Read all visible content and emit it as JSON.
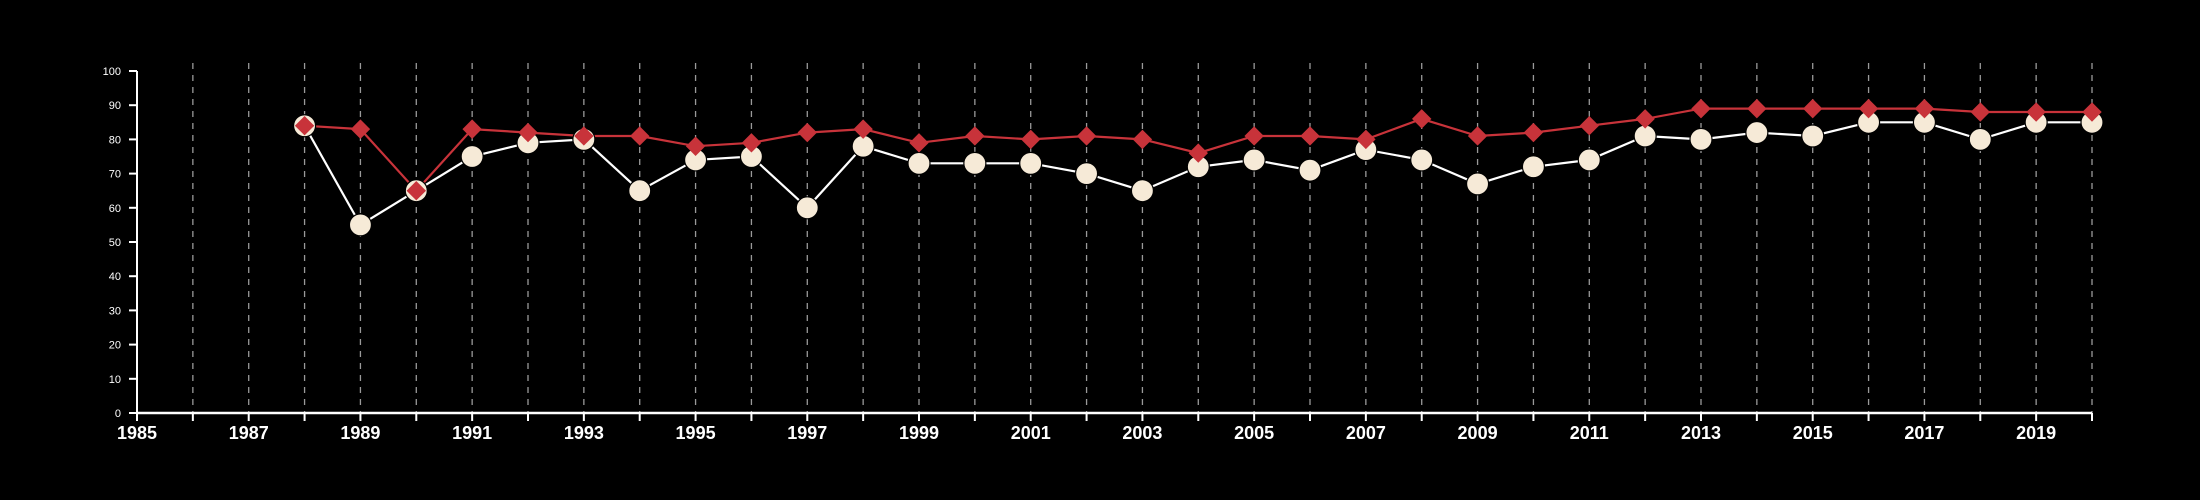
{
  "chart_data": {
    "type": "line",
    "title": "",
    "xlabel": "",
    "ylabel": "",
    "xlim": [
      1985,
      2020
    ],
    "ylim": [
      0,
      100
    ],
    "y_ticks": [
      0,
      10,
      20,
      30,
      40,
      50,
      60,
      70,
      80,
      90,
      100
    ],
    "x_tick_labels": [
      "1985",
      "1987",
      "1989",
      "1991",
      "1993",
      "1995",
      "1997",
      "1999",
      "2001",
      "2003",
      "2005",
      "2007",
      "2009",
      "2011",
      "2013",
      "2015",
      "2017",
      "2019"
    ],
    "vertical_gridlines": "dashed, every year 1986–2020",
    "legend": "none",
    "x": [
      1988,
      1989,
      1990,
      1991,
      1992,
      1993,
      1994,
      1995,
      1996,
      1997,
      1998,
      1999,
      2000,
      2001,
      2002,
      2003,
      2004,
      2005,
      2006,
      2007,
      2008,
      2009,
      2010,
      2011,
      2012,
      2013,
      2014,
      2015,
      2016,
      2017,
      2018,
      2019,
      2020
    ],
    "series": [
      {
        "marker": "circle",
        "color": "#f6ead7",
        "line_color": "#ffffff",
        "values": [
          84,
          55,
          65,
          75,
          79,
          80,
          65,
          74,
          75,
          60,
          78,
          73,
          73,
          73,
          70,
          65,
          72,
          74,
          71,
          77,
          74,
          67,
          72,
          74,
          81,
          80,
          82,
          81,
          85,
          85,
          80,
          85,
          85
        ]
      },
      {
        "marker": "diamond",
        "color": "#c8333a",
        "line_color": "#c8333a",
        "values": [
          84,
          83,
          65,
          83,
          82,
          81,
          81,
          78,
          79,
          82,
          83,
          79,
          81,
          80,
          81,
          80,
          76,
          81,
          81,
          80,
          86,
          81,
          82,
          84,
          86,
          89,
          89,
          89,
          89,
          89,
          88,
          88,
          88
        ]
      }
    ]
  }
}
